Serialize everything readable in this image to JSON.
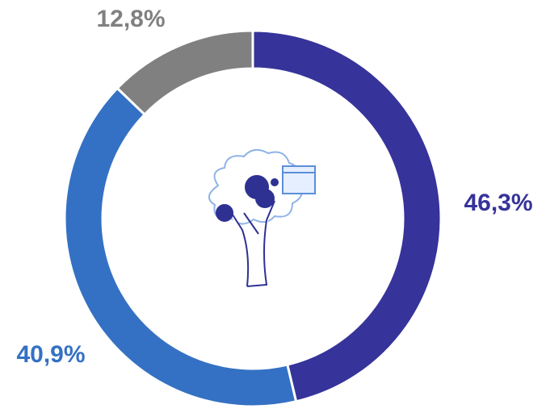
{
  "chart_data": {
    "type": "donut",
    "categories": [
      null,
      null,
      null
    ],
    "values": [
      46.3,
      40.9,
      12.8
    ],
    "value_labels": [
      "46,3%",
      "40,9%",
      "12,8%"
    ],
    "colors": [
      "#36339a",
      "#3471c4",
      "#808080"
    ]
  }
}
